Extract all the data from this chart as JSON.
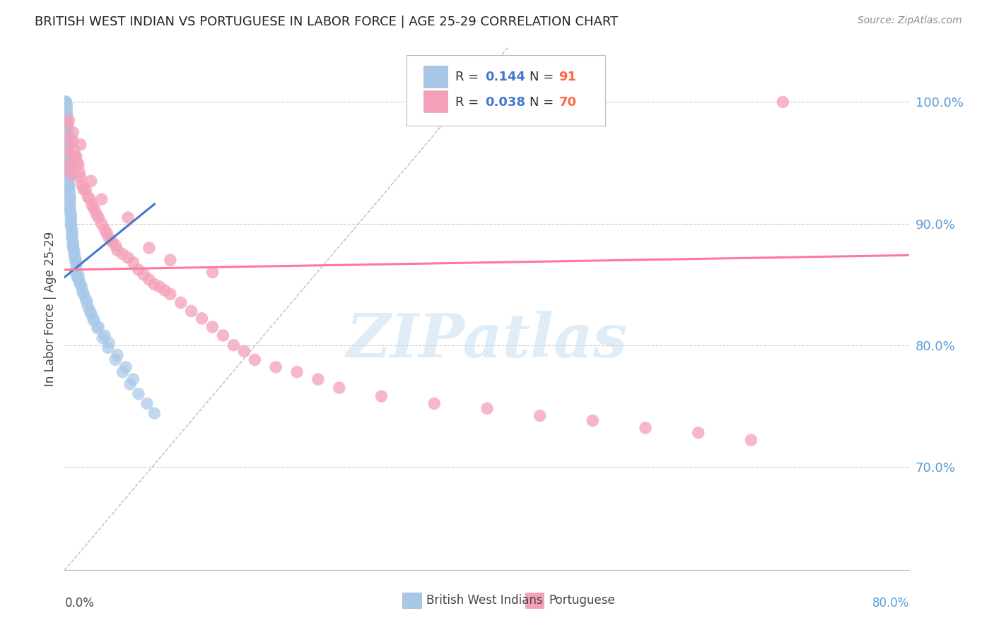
{
  "title": "BRITISH WEST INDIAN VS PORTUGUESE IN LABOR FORCE | AGE 25-29 CORRELATION CHART",
  "source": "Source: ZipAtlas.com",
  "ylabel": "In Labor Force | Age 25-29",
  "ytick_labels": [
    "70.0%",
    "80.0%",
    "90.0%",
    "100.0%"
  ],
  "ytick_values": [
    0.7,
    0.8,
    0.9,
    1.0
  ],
  "xlim": [
    0.0,
    0.8
  ],
  "ylim": [
    0.615,
    1.045
  ],
  "legend_blue_r": "0.144",
  "legend_blue_n": "91",
  "legend_pink_r": "0.038",
  "legend_pink_n": "70",
  "legend_label_blue": "British West Indians",
  "legend_label_pink": "Portuguese",
  "blue_color": "#A8C8E8",
  "pink_color": "#F4A0B8",
  "trendline_blue_color": "#4477CC",
  "trendline_pink_color": "#FF7799",
  "diagonal_color": "#BBBBCC",
  "r_value_color": "#4477CC",
  "n_value_color": "#FF6644",
  "ytick_color": "#5B9BD5",
  "watermark": "ZIPatlas",
  "blue_x": [
    0.001,
    0.001,
    0.001,
    0.001,
    0.001,
    0.001,
    0.002,
    0.002,
    0.002,
    0.002,
    0.002,
    0.002,
    0.002,
    0.002,
    0.003,
    0.003,
    0.003,
    0.003,
    0.003,
    0.003,
    0.003,
    0.003,
    0.003,
    0.003,
    0.003,
    0.004,
    0.004,
    0.004,
    0.004,
    0.004,
    0.004,
    0.004,
    0.004,
    0.004,
    0.004,
    0.005,
    0.005,
    0.005,
    0.005,
    0.005,
    0.005,
    0.005,
    0.006,
    0.006,
    0.006,
    0.006,
    0.006,
    0.007,
    0.007,
    0.007,
    0.007,
    0.008,
    0.008,
    0.008,
    0.009,
    0.009,
    0.01,
    0.01,
    0.011,
    0.011,
    0.013,
    0.013,
    0.015,
    0.016,
    0.018,
    0.02,
    0.022,
    0.025,
    0.028,
    0.032,
    0.038,
    0.042,
    0.05,
    0.058,
    0.065,
    0.01,
    0.012,
    0.014,
    0.017,
    0.021,
    0.024,
    0.027,
    0.031,
    0.036,
    0.041,
    0.048,
    0.055,
    0.062,
    0.07,
    0.078,
    0.085
  ],
  "blue_y": [
    1.0,
    1.0,
    1.0,
    1.0,
    1.0,
    1.0,
    0.998,
    0.995,
    0.992,
    0.99,
    0.988,
    0.985,
    0.982,
    0.98,
    0.978,
    0.975,
    0.972,
    0.97,
    0.968,
    0.965,
    0.962,
    0.96,
    0.958,
    0.955,
    0.952,
    0.95,
    0.948,
    0.945,
    0.942,
    0.94,
    0.938,
    0.935,
    0.932,
    0.93,
    0.928,
    0.925,
    0.922,
    0.92,
    0.918,
    0.915,
    0.912,
    0.91,
    0.908,
    0.905,
    0.902,
    0.9,
    0.898,
    0.895,
    0.892,
    0.89,
    0.888,
    0.885,
    0.882,
    0.88,
    0.878,
    0.875,
    0.872,
    0.87,
    0.868,
    0.865,
    0.858,
    0.855,
    0.85,
    0.848,
    0.842,
    0.838,
    0.832,
    0.826,
    0.82,
    0.815,
    0.808,
    0.802,
    0.792,
    0.782,
    0.772,
    0.86,
    0.856,
    0.852,
    0.844,
    0.836,
    0.828,
    0.822,
    0.814,
    0.806,
    0.798,
    0.788,
    0.778,
    0.768,
    0.76,
    0.752,
    0.744
  ],
  "pink_x": [
    0.002,
    0.003,
    0.004,
    0.005,
    0.006,
    0.007,
    0.008,
    0.009,
    0.01,
    0.011,
    0.012,
    0.013,
    0.014,
    0.015,
    0.016,
    0.018,
    0.02,
    0.022,
    0.024,
    0.026,
    0.028,
    0.03,
    0.032,
    0.035,
    0.038,
    0.04,
    0.042,
    0.045,
    0.048,
    0.05,
    0.055,
    0.06,
    0.065,
    0.07,
    0.075,
    0.08,
    0.085,
    0.09,
    0.095,
    0.1,
    0.11,
    0.12,
    0.13,
    0.14,
    0.15,
    0.16,
    0.17,
    0.18,
    0.2,
    0.22,
    0.24,
    0.26,
    0.3,
    0.35,
    0.4,
    0.45,
    0.5,
    0.55,
    0.6,
    0.65,
    0.003,
    0.008,
    0.015,
    0.025,
    0.035,
    0.06,
    0.08,
    0.1,
    0.14,
    0.68
  ],
  "pink_y": [
    0.945,
    0.96,
    0.985,
    0.97,
    0.95,
    0.94,
    0.968,
    0.96,
    0.955,
    0.955,
    0.95,
    0.948,
    0.942,
    0.938,
    0.932,
    0.928,
    0.928,
    0.922,
    0.92,
    0.915,
    0.912,
    0.908,
    0.905,
    0.9,
    0.895,
    0.892,
    0.888,
    0.885,
    0.882,
    0.878,
    0.875,
    0.872,
    0.868,
    0.862,
    0.858,
    0.854,
    0.85,
    0.848,
    0.845,
    0.842,
    0.835,
    0.828,
    0.822,
    0.815,
    0.808,
    0.8,
    0.795,
    0.788,
    0.782,
    0.778,
    0.772,
    0.765,
    0.758,
    0.752,
    0.748,
    0.742,
    0.738,
    0.732,
    0.728,
    0.722,
    0.982,
    0.975,
    0.965,
    0.935,
    0.92,
    0.905,
    0.88,
    0.87,
    0.86,
    1.0
  ]
}
